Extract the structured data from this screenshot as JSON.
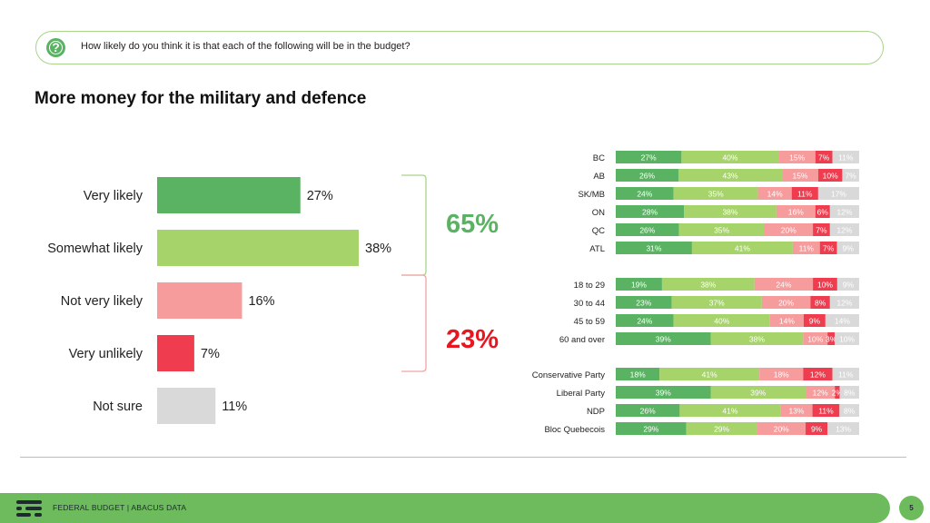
{
  "question": {
    "text": "How likely do you think it is that each of the following will be in the budget?",
    "icon": "question-icon"
  },
  "footer": {
    "text": "FEDERAL BUDGET | ABACUS DATA",
    "page": "5"
  },
  "colors": {
    "very_likely": "#5ab362",
    "somewhat_likely": "#a6d36a",
    "not_very_likely": "#f79c9c",
    "very_unlikely": "#ef3d4f",
    "not_sure": "#d9d9d9",
    "total_likely": "#5ab362",
    "total_unlikely": "#e8161e"
  },
  "chart_data": [
    {
      "type": "bar",
      "orientation": "horizontal",
      "title": "More money for the military and defence",
      "categories": [
        "Very likely",
        "Somewhat likely",
        "Not very likely",
        "Very unlikely",
        "Not sure"
      ],
      "values": [
        27,
        38,
        16,
        7,
        11
      ],
      "value_labels": [
        "27%",
        "38%",
        "16%",
        "7%",
        "11%"
      ],
      "annotations": [
        {
          "label": "65%",
          "covers": [
            "Very likely",
            "Somewhat likely"
          ]
        },
        {
          "label": "23%",
          "covers": [
            "Not very likely",
            "Very unlikely"
          ]
        }
      ]
    },
    {
      "type": "bar",
      "orientation": "horizontal",
      "stacked": true,
      "series_order": [
        "Very likely",
        "Somewhat likely",
        "Not very likely",
        "Very unlikely",
        "Not sure"
      ],
      "groups": [
        {
          "rows": [
            {
              "label": "BC",
              "values": [
                27,
                40,
                15,
                7,
                11
              ]
            },
            {
              "label": "AB",
              "values": [
                26,
                43,
                15,
                10,
                7
              ]
            },
            {
              "label": "SK/MB",
              "values": [
                24,
                35,
                14,
                11,
                17
              ]
            },
            {
              "label": "ON",
              "values": [
                28,
                38,
                16,
                6,
                12
              ]
            },
            {
              "label": "QC",
              "values": [
                26,
                35,
                20,
                7,
                12
              ]
            },
            {
              "label": "ATL",
              "values": [
                31,
                41,
                11,
                7,
                9
              ]
            }
          ]
        },
        {
          "rows": [
            {
              "label": "18 to 29",
              "values": [
                19,
                38,
                24,
                10,
                9
              ]
            },
            {
              "label": "30 to 44",
              "values": [
                23,
                37,
                20,
                8,
                12
              ]
            },
            {
              "label": "45 to 59",
              "values": [
                24,
                40,
                14,
                9,
                14
              ]
            },
            {
              "label": "60 and over",
              "values": [
                39,
                38,
                10,
                3,
                10
              ]
            }
          ]
        },
        {
          "rows": [
            {
              "label": "Conservative Party",
              "values": [
                18,
                41,
                18,
                12,
                11
              ]
            },
            {
              "label": "Liberal Party",
              "values": [
                39,
                39,
                12,
                2,
                8
              ]
            },
            {
              "label": "NDP",
              "values": [
                26,
                41,
                13,
                11,
                8
              ]
            },
            {
              "label": "Bloc Quebecois",
              "values": [
                29,
                29,
                20,
                9,
                13
              ]
            }
          ]
        }
      ]
    }
  ]
}
